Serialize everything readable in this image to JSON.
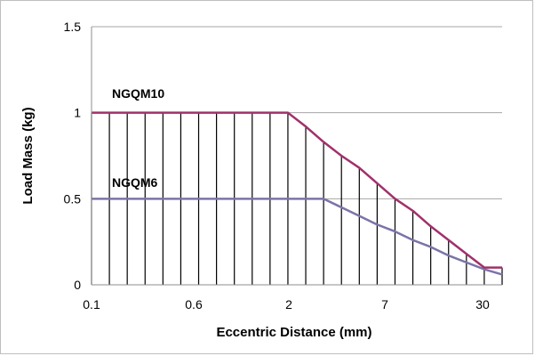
{
  "chart_data": {
    "type": "line",
    "title": "",
    "xlabel": "Eccentric Distance (mm)",
    "ylabel": "Load Mass (kg)",
    "x_ticks": [
      "0.1",
      "0.6",
      "2",
      "7",
      "30"
    ],
    "y_ticks": [
      "0",
      "0.5",
      "1",
      "1.5"
    ],
    "ylim": [
      0,
      1.5
    ],
    "grid": "horizontal",
    "x": [
      "0.1",
      "0.2",
      "0.3",
      "0.4",
      "0.5",
      "0.6",
      "0.8",
      "1",
      "1.2",
      "1.4",
      "1.6",
      "2",
      "3",
      "4",
      "5",
      "6",
      "7",
      "9",
      "12",
      "15",
      "20",
      "25",
      "30",
      "35"
    ],
    "series": [
      {
        "name": "NGQM10",
        "color": "#a0316b",
        "values": [
          1,
          1,
          1,
          1,
          1,
          1,
          1,
          1,
          1,
          1,
          1,
          1,
          0.92,
          0.83,
          0.75,
          0.68,
          0.59,
          0.5,
          0.43,
          0.34,
          0.26,
          0.18,
          0.1,
          0.1
        ]
      },
      {
        "name": "NGQM6",
        "color": "#7a74a8",
        "values": [
          0.5,
          0.5,
          0.5,
          0.5,
          0.5,
          0.5,
          0.5,
          0.5,
          0.5,
          0.5,
          0.5,
          0.5,
          0.5,
          0.5,
          0.45,
          0.4,
          0.35,
          0.31,
          0.26,
          0.22,
          0.17,
          0.13,
          0.09,
          0.06
        ]
      }
    ],
    "hatch_color": "#000000",
    "grid_color": "#a6a6a6"
  }
}
